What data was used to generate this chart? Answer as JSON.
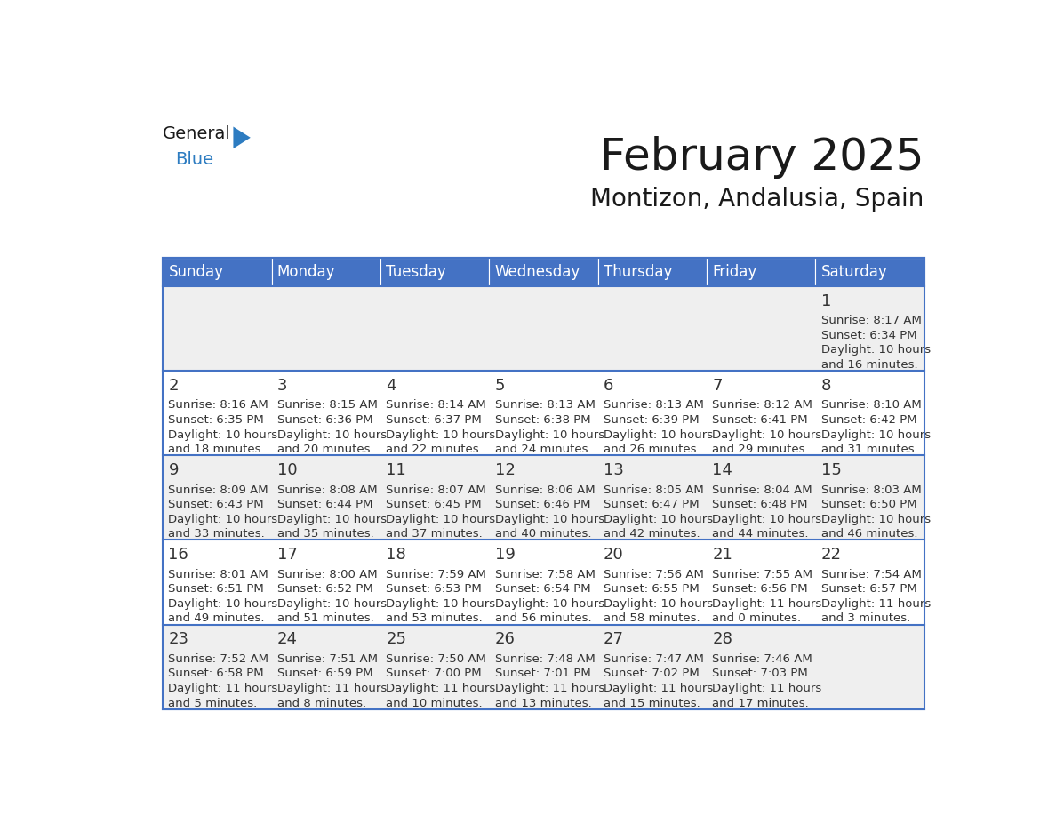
{
  "title": "February 2025",
  "subtitle": "Montizon, Andalusia, Spain",
  "header_bg": "#4472C4",
  "header_text": "#FFFFFF",
  "cell_bg_odd": "#EFEFEF",
  "cell_bg_even": "#FFFFFF",
  "border_color": "#4472C4",
  "day_num_color": "#333333",
  "text_color": "#333333",
  "days_of_week": [
    "Sunday",
    "Monday",
    "Tuesday",
    "Wednesday",
    "Thursday",
    "Friday",
    "Saturday"
  ],
  "calendar_data": [
    [
      {
        "day": "",
        "sunrise": "",
        "sunset": "",
        "daylight": ""
      },
      {
        "day": "",
        "sunrise": "",
        "sunset": "",
        "daylight": ""
      },
      {
        "day": "",
        "sunrise": "",
        "sunset": "",
        "daylight": ""
      },
      {
        "day": "",
        "sunrise": "",
        "sunset": "",
        "daylight": ""
      },
      {
        "day": "",
        "sunrise": "",
        "sunset": "",
        "daylight": ""
      },
      {
        "day": "",
        "sunrise": "",
        "sunset": "",
        "daylight": ""
      },
      {
        "day": "1",
        "sunrise": "8:17 AM",
        "sunset": "6:34 PM",
        "daylight": "10 hours and 16 minutes."
      }
    ],
    [
      {
        "day": "2",
        "sunrise": "8:16 AM",
        "sunset": "6:35 PM",
        "daylight": "10 hours and 18 minutes."
      },
      {
        "day": "3",
        "sunrise": "8:15 AM",
        "sunset": "6:36 PM",
        "daylight": "10 hours and 20 minutes."
      },
      {
        "day": "4",
        "sunrise": "8:14 AM",
        "sunset": "6:37 PM",
        "daylight": "10 hours and 22 minutes."
      },
      {
        "day": "5",
        "sunrise": "8:13 AM",
        "sunset": "6:38 PM",
        "daylight": "10 hours and 24 minutes."
      },
      {
        "day": "6",
        "sunrise": "8:13 AM",
        "sunset": "6:39 PM",
        "daylight": "10 hours and 26 minutes."
      },
      {
        "day": "7",
        "sunrise": "8:12 AM",
        "sunset": "6:41 PM",
        "daylight": "10 hours and 29 minutes."
      },
      {
        "day": "8",
        "sunrise": "8:10 AM",
        "sunset": "6:42 PM",
        "daylight": "10 hours and 31 minutes."
      }
    ],
    [
      {
        "day": "9",
        "sunrise": "8:09 AM",
        "sunset": "6:43 PM",
        "daylight": "10 hours and 33 minutes."
      },
      {
        "day": "10",
        "sunrise": "8:08 AM",
        "sunset": "6:44 PM",
        "daylight": "10 hours and 35 minutes."
      },
      {
        "day": "11",
        "sunrise": "8:07 AM",
        "sunset": "6:45 PM",
        "daylight": "10 hours and 37 minutes."
      },
      {
        "day": "12",
        "sunrise": "8:06 AM",
        "sunset": "6:46 PM",
        "daylight": "10 hours and 40 minutes."
      },
      {
        "day": "13",
        "sunrise": "8:05 AM",
        "sunset": "6:47 PM",
        "daylight": "10 hours and 42 minutes."
      },
      {
        "day": "14",
        "sunrise": "8:04 AM",
        "sunset": "6:48 PM",
        "daylight": "10 hours and 44 minutes."
      },
      {
        "day": "15",
        "sunrise": "8:03 AM",
        "sunset": "6:50 PM",
        "daylight": "10 hours and 46 minutes."
      }
    ],
    [
      {
        "day": "16",
        "sunrise": "8:01 AM",
        "sunset": "6:51 PM",
        "daylight": "10 hours and 49 minutes."
      },
      {
        "day": "17",
        "sunrise": "8:00 AM",
        "sunset": "6:52 PM",
        "daylight": "10 hours and 51 minutes."
      },
      {
        "day": "18",
        "sunrise": "7:59 AM",
        "sunset": "6:53 PM",
        "daylight": "10 hours and 53 minutes."
      },
      {
        "day": "19",
        "sunrise": "7:58 AM",
        "sunset": "6:54 PM",
        "daylight": "10 hours and 56 minutes."
      },
      {
        "day": "20",
        "sunrise": "7:56 AM",
        "sunset": "6:55 PM",
        "daylight": "10 hours and 58 minutes."
      },
      {
        "day": "21",
        "sunrise": "7:55 AM",
        "sunset": "6:56 PM",
        "daylight": "11 hours and 0 minutes."
      },
      {
        "day": "22",
        "sunrise": "7:54 AM",
        "sunset": "6:57 PM",
        "daylight": "11 hours and 3 minutes."
      }
    ],
    [
      {
        "day": "23",
        "sunrise": "7:52 AM",
        "sunset": "6:58 PM",
        "daylight": "11 hours and 5 minutes."
      },
      {
        "day": "24",
        "sunrise": "7:51 AM",
        "sunset": "6:59 PM",
        "daylight": "11 hours and 8 minutes."
      },
      {
        "day": "25",
        "sunrise": "7:50 AM",
        "sunset": "7:00 PM",
        "daylight": "11 hours and 10 minutes."
      },
      {
        "day": "26",
        "sunrise": "7:48 AM",
        "sunset": "7:01 PM",
        "daylight": "11 hours and 13 minutes."
      },
      {
        "day": "27",
        "sunrise": "7:47 AM",
        "sunset": "7:02 PM",
        "daylight": "11 hours and 15 minutes."
      },
      {
        "day": "28",
        "sunrise": "7:46 AM",
        "sunset": "7:03 PM",
        "daylight": "11 hours and 17 minutes."
      },
      {
        "day": "",
        "sunrise": "",
        "sunset": "",
        "daylight": ""
      }
    ]
  ],
  "logo_color_general": "#1a1a1a",
  "logo_color_blue": "#2d7cc1",
  "logo_triangle_color": "#2d7cc1",
  "title_fontsize": 36,
  "subtitle_fontsize": 20,
  "header_fontsize": 12,
  "day_num_fontsize": 13,
  "cell_text_fontsize": 9.5
}
